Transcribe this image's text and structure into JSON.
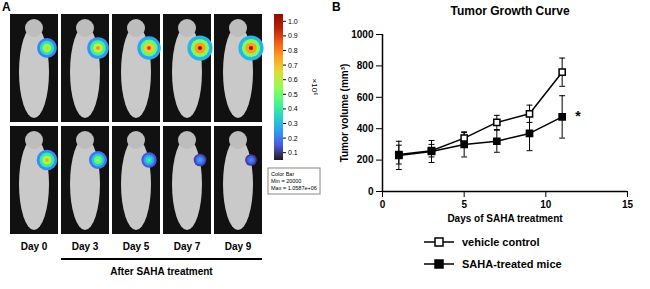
{
  "chart_data": [
    {
      "type": "image",
      "label": "A",
      "columns": [
        "Day 0",
        "Day 3",
        "Day 5",
        "Day 7",
        "Day 9"
      ],
      "caption": "After SAHA treatment",
      "signal": [
        [
          0.7,
          0.8,
          0.9,
          1.0,
          1.0
        ],
        [
          0.75,
          0.6,
          0.45,
          0.3,
          0.25
        ]
      ],
      "colorbar": {
        "range": [
          0.05,
          1.05
        ],
        "ticks": [
          0.1,
          0.2,
          0.3,
          0.4,
          0.5,
          0.6,
          0.7,
          0.8,
          0.9,
          {
            "value": 1.0,
            "label": "1.0"
          }
        ],
        "label": "×10⁶",
        "note": [
          "Color Bar",
          "Min = 20000",
          "Max = 1.0587e+06"
        ]
      }
    },
    {
      "type": "line",
      "label": "B",
      "title": "Tumor Growth Curve",
      "x_label": "Days of SAHA treatment",
      "y_label": "Tumor volume (mm³)",
      "x": [
        1,
        3,
        5,
        7,
        9,
        11
      ],
      "series": [
        {
          "name": "vehicle control",
          "color": "#000000",
          "marker": "square-open",
          "values": [
            235,
            260,
            340,
            440,
            495,
            760
          ],
          "errors": [
            60,
            40,
            35,
            45,
            55,
            90
          ]
        },
        {
          "name": "SAHA-treated mice",
          "color": "#000000",
          "marker": "square",
          "values": [
            230,
            255,
            300,
            320,
            370,
            475
          ],
          "errors": [
            90,
            70,
            80,
            70,
            110,
            135
          ]
        }
      ],
      "annotations": [
        {
          "x": 11.8,
          "y": 480,
          "text": "*"
        }
      ],
      "xlim": [
        0,
        15
      ],
      "xticks": [
        0,
        5,
        10,
        15
      ],
      "ylim": [
        0,
        1000
      ],
      "yticks": [
        0,
        200,
        400,
        600,
        800,
        1000
      ],
      "legend": "bottom"
    }
  ]
}
